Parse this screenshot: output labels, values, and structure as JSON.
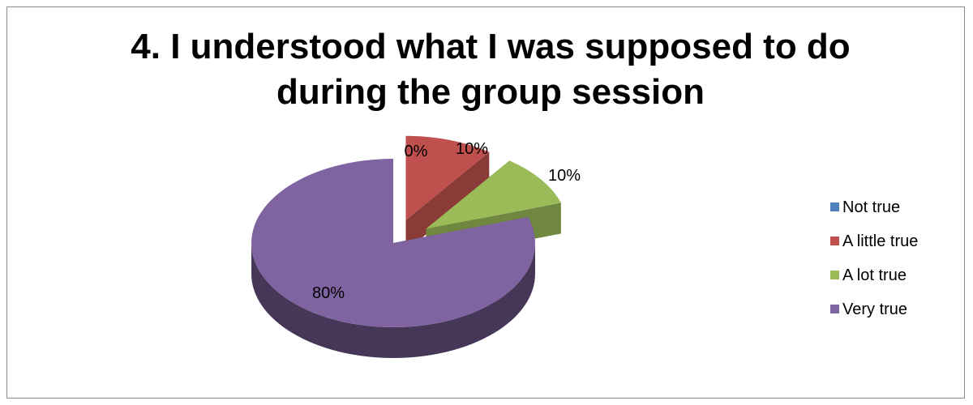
{
  "chart_data": {
    "type": "pie",
    "title_lines": [
      "4. I understood what I was supposed to do",
      "during the group session"
    ],
    "categories": [
      "Not true",
      "A little true",
      "A lot true",
      "Very true"
    ],
    "values": [
      0,
      10,
      10,
      80
    ],
    "data_labels": [
      "0%",
      "10%",
      "10%",
      "80%"
    ],
    "colors": [
      "#4f81bd",
      "#c0504d",
      "#9bbb59",
      "#8064a2"
    ],
    "style": "3d-exploded",
    "legend_position": "right"
  }
}
